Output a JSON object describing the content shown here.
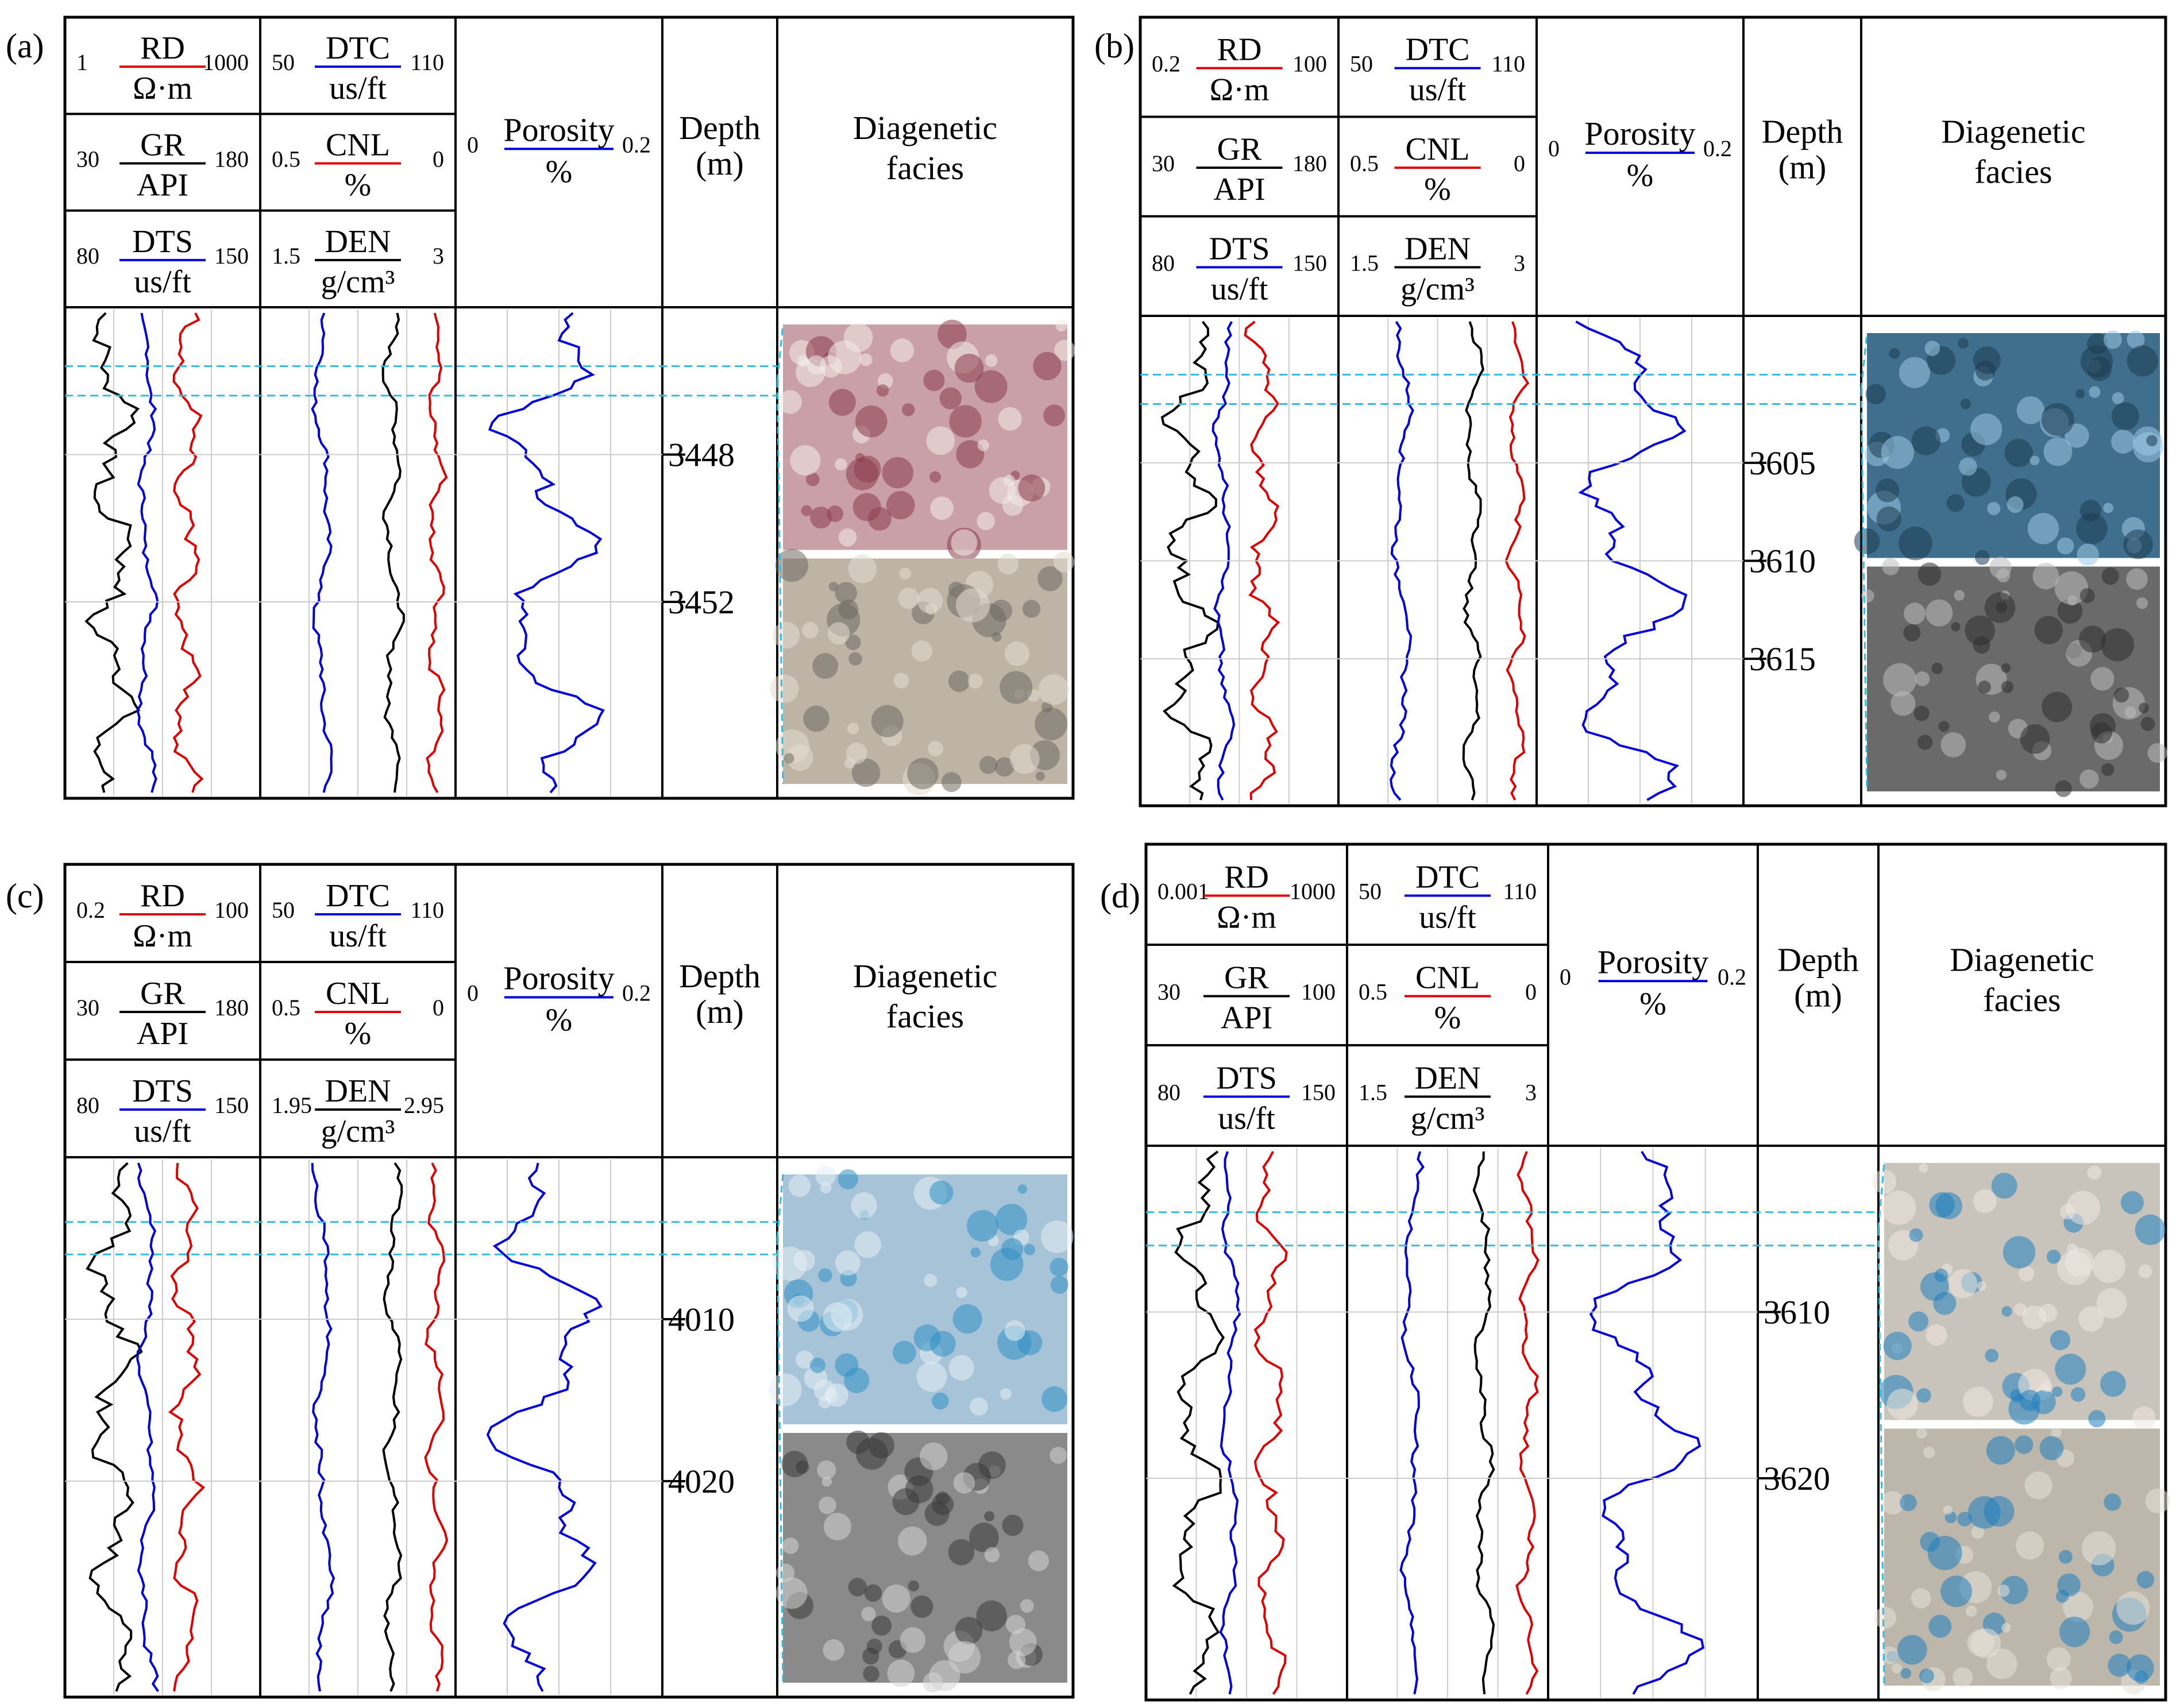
{
  "panels": [
    {
      "label": "(a)",
      "headers": {
        "rd": {
          "name": "RD",
          "unit": "Ω·m",
          "min": "1",
          "max": "1000",
          "color": "#e00000"
        },
        "gr": {
          "name": "GR",
          "unit": "API",
          "min": "30",
          "max": "180",
          "color": "#000000"
        },
        "dts": {
          "name": "DTS",
          "unit": "us/ft",
          "min": "80",
          "max": "150",
          "color": "#0000dd"
        },
        "dtc": {
          "name": "DTC",
          "unit": "us/ft",
          "min": "50",
          "max": "110",
          "color": "#0000dd"
        },
        "cnl": {
          "name": "CNL",
          "unit": "%",
          "min": "0.5",
          "max": "0",
          "color": "#e00000"
        },
        "den": {
          "name": "DEN",
          "unit": "g/cm³",
          "min": "1.5",
          "max": "3",
          "color": "#000000"
        },
        "porosity": {
          "name": "Porosity",
          "unit": "%",
          "min": "0",
          "max": "0.2",
          "color": "#0000dd"
        },
        "depth": {
          "line1": "Depth",
          "line2": "(m)"
        },
        "facies": {
          "line1": "Diagenetic",
          "line2": "facies"
        }
      },
      "depth_ticks": [
        "3448",
        "3452"
      ],
      "photo_1": {
        "kind": "thin section, red-stained",
        "colors": [
          "#c9a0a8",
          "#8c3c4c",
          "#f2ece6"
        ]
      },
      "photo_2": {
        "kind": "thin section, grey",
        "colors": [
          "#bdb4a6",
          "#6f6a62",
          "#e4dcd0"
        ]
      }
    },
    {
      "label": "(b)",
      "headers": {
        "rd": {
          "name": "RD",
          "unit": "Ω·m",
          "min": "0.2",
          "max": "100",
          "color": "#e00000"
        },
        "gr": {
          "name": "GR",
          "unit": "API",
          "min": "30",
          "max": "180",
          "color": "#000000"
        },
        "dts": {
          "name": "DTS",
          "unit": "us/ft",
          "min": "80",
          "max": "150",
          "color": "#0000dd"
        },
        "dtc": {
          "name": "DTC",
          "unit": "us/ft",
          "min": "50",
          "max": "110",
          "color": "#0000dd"
        },
        "cnl": {
          "name": "CNL",
          "unit": "%",
          "min": "0.5",
          "max": "0",
          "color": "#e00000"
        },
        "den": {
          "name": "DEN",
          "unit": "g/cm³",
          "min": "1.5",
          "max": "3",
          "color": "#000000"
        },
        "porosity": {
          "name": "Porosity",
          "unit": "%",
          "min": "0",
          "max": "0.2",
          "color": "#0000dd"
        },
        "depth": {
          "line1": "Depth",
          "line2": "(m)"
        },
        "facies": {
          "line1": "Diagenetic",
          "line2": "facies"
        }
      },
      "depth_ticks": [
        "3605",
        "3610",
        "3615"
      ],
      "photo_1": {
        "kind": "thin section, blue cast",
        "colors": [
          "#3f6f8c",
          "#9cc8e4",
          "#1d3d52"
        ]
      },
      "photo_2": {
        "kind": "SEM image",
        "colors": [
          "#6a6a6a",
          "#2e2e2e",
          "#bcbcbc"
        ]
      }
    },
    {
      "label": "(c)",
      "headers": {
        "rd": {
          "name": "RD",
          "unit": "Ω·m",
          "min": "0.2",
          "max": "100",
          "color": "#e00000"
        },
        "gr": {
          "name": "GR",
          "unit": "API",
          "min": "30",
          "max": "180",
          "color": "#000000"
        },
        "dts": {
          "name": "DTS",
          "unit": "us/ft",
          "min": "80",
          "max": "150",
          "color": "#0000dd"
        },
        "dtc": {
          "name": "DTC",
          "unit": "us/ft",
          "min": "50",
          "max": "110",
          "color": "#0000dd"
        },
        "cnl": {
          "name": "CNL",
          "unit": "%",
          "min": "0.5",
          "max": "0",
          "color": "#e00000"
        },
        "den": {
          "name": "DEN",
          "unit": "g/cm³",
          "min": "1.95",
          "max": "2.95",
          "color": "#000000"
        },
        "porosity": {
          "name": "Porosity",
          "unit": "%",
          "min": "0",
          "max": "0.2",
          "color": "#0000dd"
        },
        "depth": {
          "line1": "Depth",
          "line2": "(m)"
        },
        "facies": {
          "line1": "Diagenetic",
          "line2": "facies"
        }
      },
      "depth_ticks": [
        "4010",
        "4020"
      ],
      "photo_1": {
        "kind": "thin section, light blue",
        "colors": [
          "#a7c3d8",
          "#2f8fc4",
          "#e4eef4"
        ]
      },
      "photo_2": {
        "kind": "SEM image",
        "colors": [
          "#8a8a8a",
          "#3a3a3a",
          "#d4d4d4"
        ]
      }
    },
    {
      "label": "(d)",
      "headers": {
        "rd": {
          "name": "RD",
          "unit": "Ω·m",
          "min": "0.001",
          "max": "1000",
          "color": "#e00000"
        },
        "gr": {
          "name": "GR",
          "unit": "API",
          "min": "30",
          "max": "100",
          "color": "#000000"
        },
        "dts": {
          "name": "DTS",
          "unit": "us/ft",
          "min": "80",
          "max": "150",
          "color": "#0000dd"
        },
        "dtc": {
          "name": "DTC",
          "unit": "us/ft",
          "min": "50",
          "max": "110",
          "color": "#0000dd"
        },
        "cnl": {
          "name": "CNL",
          "unit": "%",
          "min": "0.5",
          "max": "0",
          "color": "#e00000"
        },
        "den": {
          "name": "DEN",
          "unit": "g/cm³",
          "min": "1.5",
          "max": "3",
          "color": "#000000"
        },
        "porosity": {
          "name": "Porosity",
          "unit": "%",
          "min": "0",
          "max": "0.2",
          "color": "#0000dd"
        },
        "depth": {
          "line1": "Depth",
          "line2": "(m)"
        },
        "facies": {
          "line1": "Diagenetic",
          "line2": "facies"
        }
      },
      "depth_ticks": [
        "3610",
        "3620"
      ],
      "photo_1": {
        "kind": "thin section, blue pores",
        "colors": [
          "#c9c4bb",
          "#1f7fbf",
          "#ece8e0"
        ]
      },
      "photo_2": {
        "kind": "thin section, blue pores",
        "colors": [
          "#bdb7ab",
          "#1f7fbf",
          "#e6e1d8"
        ]
      }
    }
  ],
  "colors": {
    "red": "#e00000",
    "blue": "#0000dd",
    "black": "#000000",
    "cyan": "#33bbdd",
    "frame": "#000000"
  }
}
